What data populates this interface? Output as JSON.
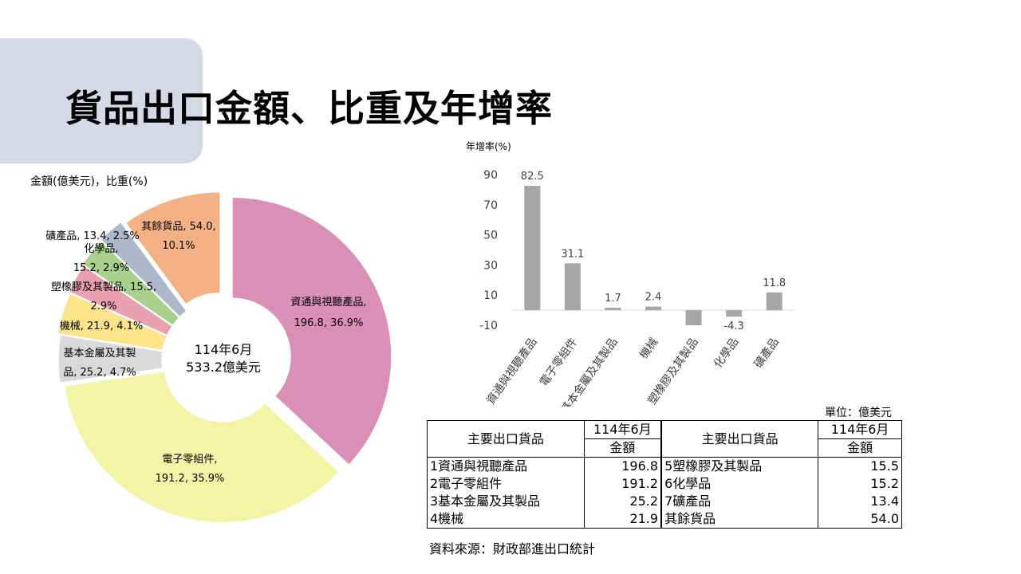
{
  "header": {
    "title": "貨品出口金額、比重及年增率"
  },
  "donut": {
    "unit_label": "金額(億美元)，比重(%)",
    "center_line1": "114年6月",
    "center_line2": "533.2億美元"
  },
  "colors": {
    "title_box": "#d5d9e6",
    "bar": "#a6a6a6",
    "slices": [
      "#d98fb6",
      "#f2f5a6",
      "#d9d9d9",
      "#fde38a",
      "#eaa0b0",
      "#a9d18e",
      "#adb9ca",
      "#f4b183"
    ]
  },
  "chart_data": [
    {
      "type": "pie",
      "variant": "donut",
      "categories": [
        "資通與視聽產品",
        "電子零組件",
        "基本金屬及其製品",
        "機械",
        "塑橡膠及其製品",
        "化學品",
        "礦產品",
        "其餘貨品"
      ],
      "values": [
        196.8,
        191.2,
        25.2,
        21.9,
        15.5,
        15.2,
        13.4,
        54.0
      ],
      "shares": [
        36.9,
        35.9,
        4.7,
        4.1,
        2.9,
        2.9,
        2.5,
        10.1
      ],
      "label_lines": [
        [
          "資通與視聽產品,",
          "196.8, 36.9%"
        ],
        [
          "電子零組件,",
          "191.2, 35.9%"
        ],
        [
          "基本金屬及其製",
          "品, 25.2, 4.7%"
        ],
        [
          "機械, 21.9, 4.1%"
        ],
        [
          "塑橡膠及其製品, 15.5,",
          "2.9%"
        ],
        [
          "化學品,",
          "15.2, 2.9%"
        ],
        [
          "礦產品, 13.4, 2.5%"
        ],
        [
          "其餘貨品, 54.0,",
          "10.1%"
        ]
      ]
    },
    {
      "type": "bar",
      "categories": [
        "資通與視聽產品",
        "電子零組件",
        "基本金屬及其製品",
        "機械",
        "塑橡膠及其製品",
        "化學品",
        "礦產品"
      ],
      "values": [
        82.5,
        31.1,
        1.7,
        2.4,
        -10.0,
        -4.3,
        11.8
      ],
      "value_labels": [
        "82.5",
        "31.1",
        "1.7",
        "2.4",
        "",
        "-4.3",
        "11.8"
      ],
      "ylabel": "年增率(%)",
      "ylim": [
        -10,
        90
      ],
      "yticks": [
        "90",
        "70",
        "50",
        "30",
        "10",
        "-10"
      ],
      "grid": false
    }
  ],
  "table": {
    "unit_note": "單位：億美元",
    "header_label": "主要出口貨品",
    "period": "114年6月",
    "amount": "金額",
    "left_rows": [
      {
        "name": "1資通與視聽產品",
        "value": "196.8"
      },
      {
        "name": "2電子零組件",
        "value": "191.2"
      },
      {
        "name": "3基本金屬及其製品",
        "value": "25.2"
      },
      {
        "name": "4機械",
        "value": "21.9"
      }
    ],
    "right_rows": [
      {
        "name": "5塑橡膠及其製品",
        "value": "15.5"
      },
      {
        "name": "6化學品",
        "value": "15.2"
      },
      {
        "name": "7礦產品",
        "value": "13.4"
      },
      {
        "name": "其餘貨品",
        "value": "54.0"
      }
    ],
    "source": "資料來源：財政部進出口統計"
  }
}
